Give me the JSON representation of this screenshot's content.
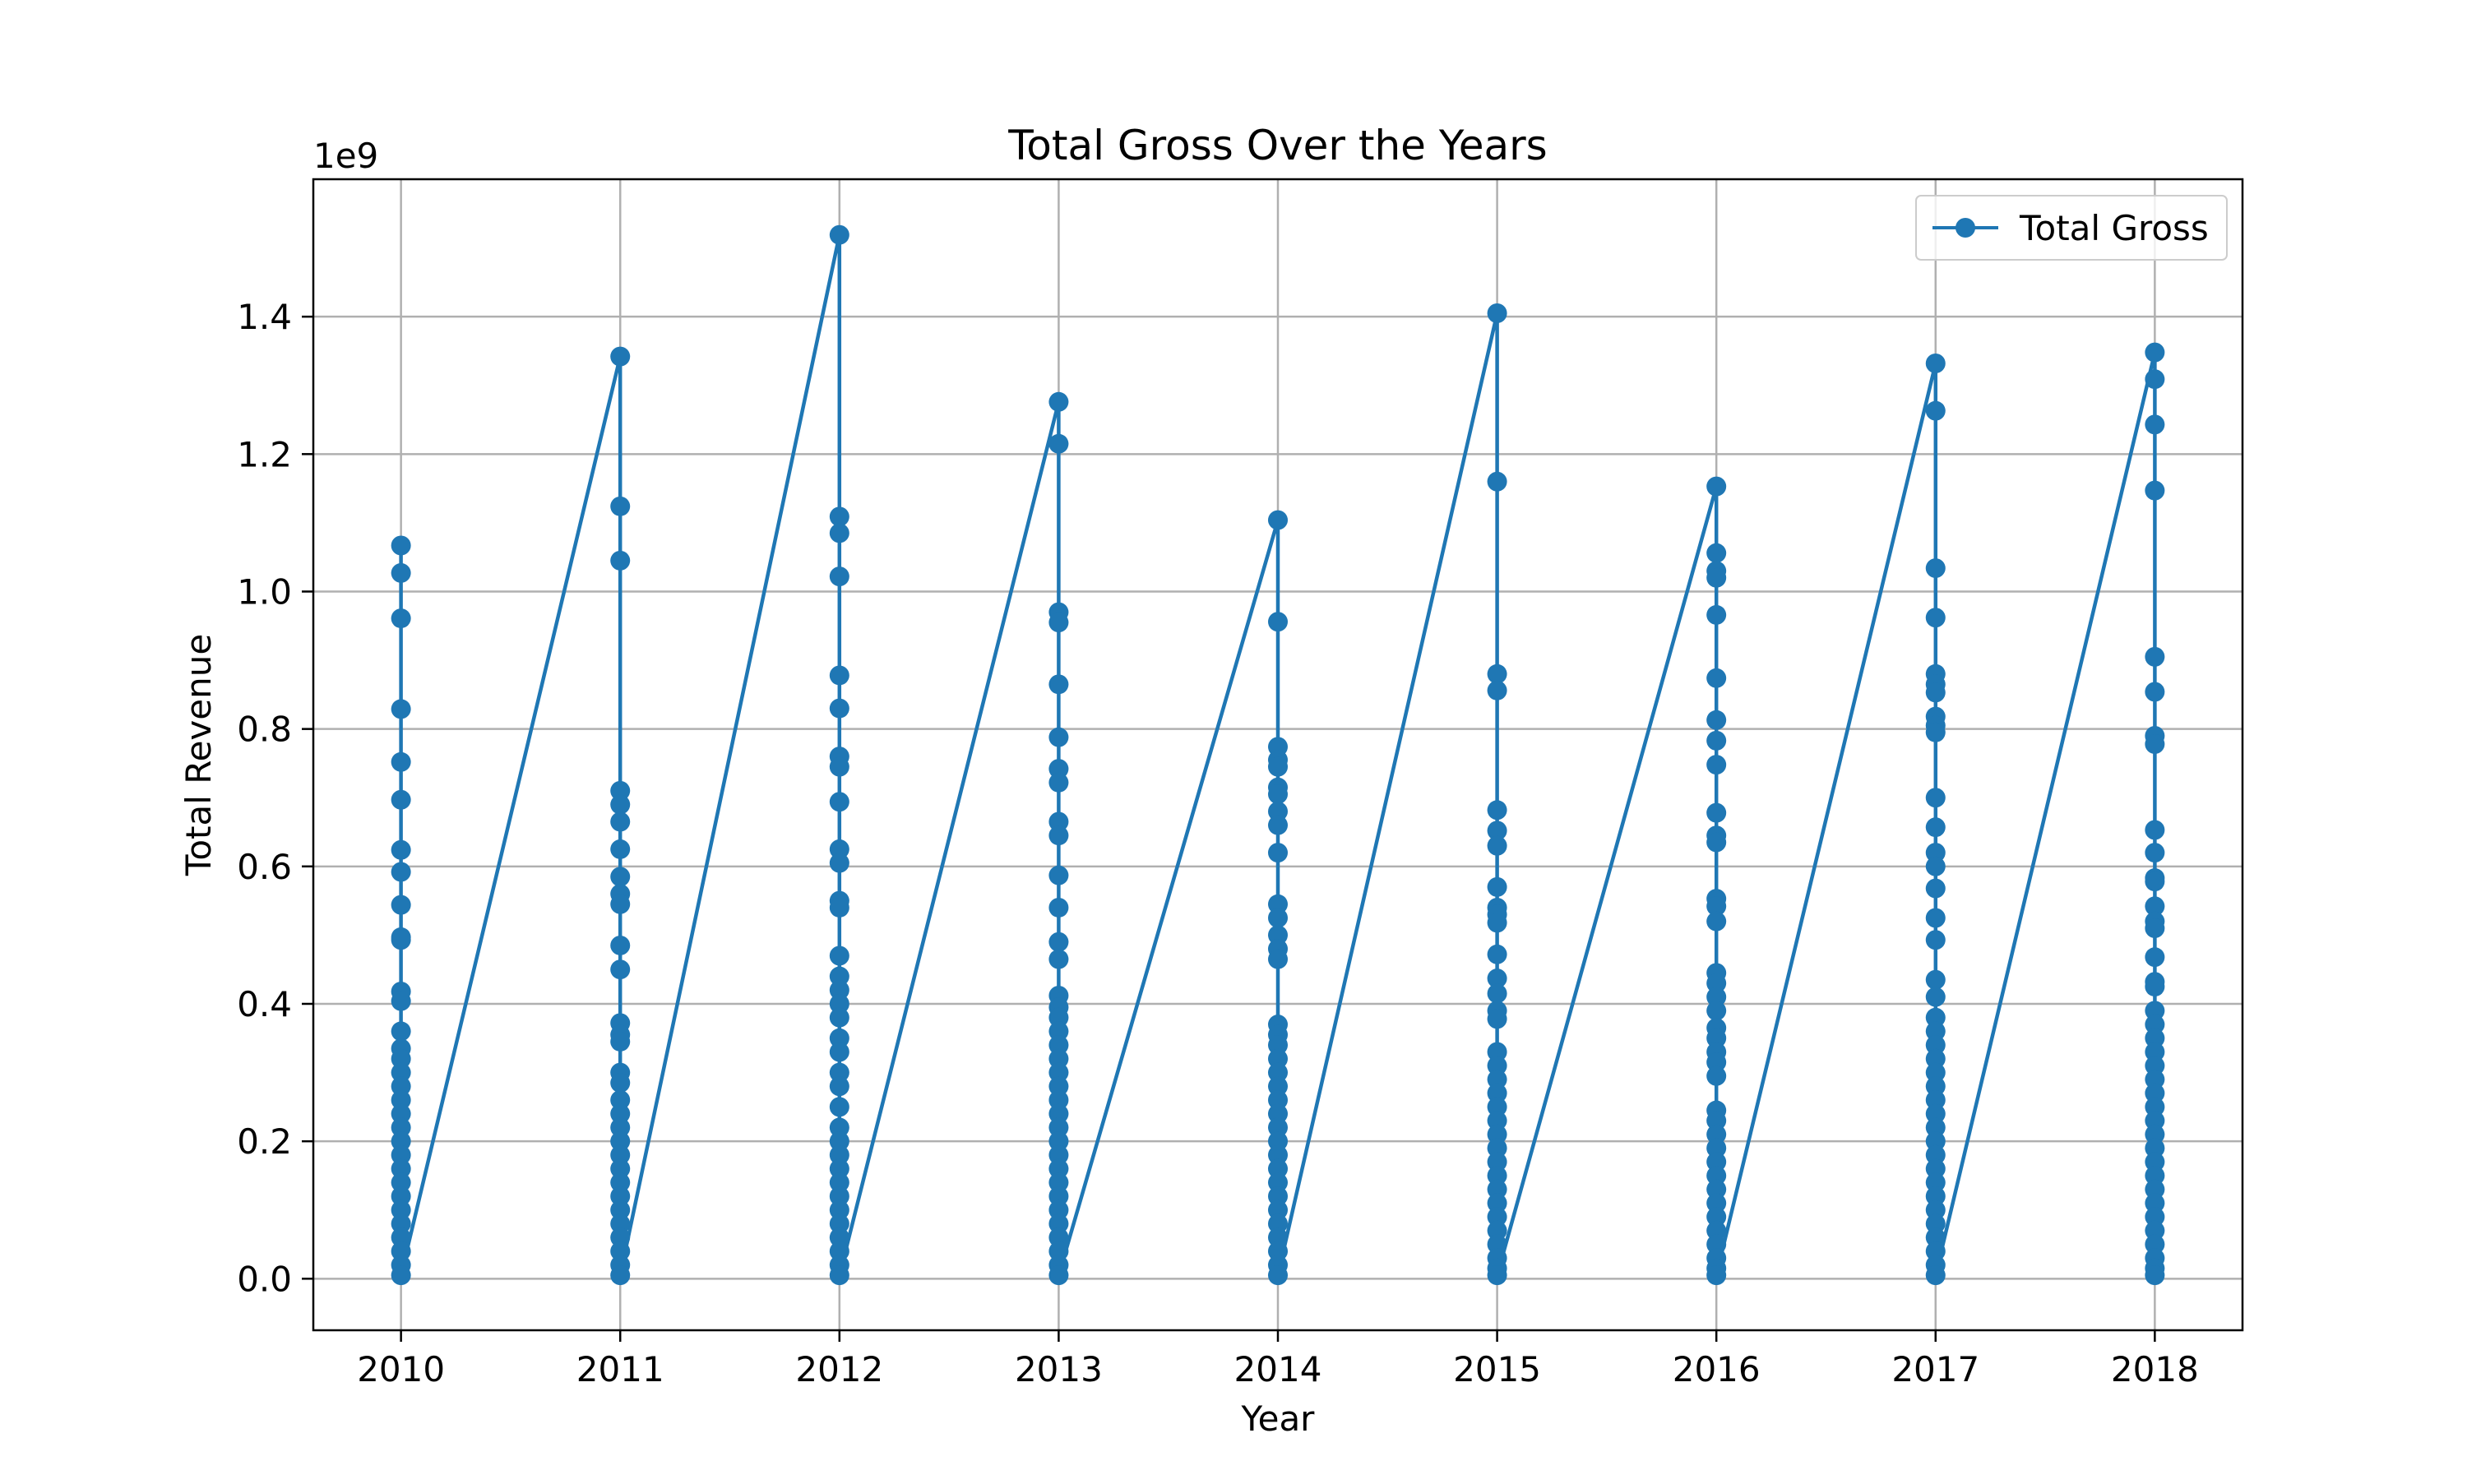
{
  "chart_data": {
    "type": "line",
    "title": "Total Gross Over the Years",
    "xlabel": "Year",
    "ylabel": "Total Revenue",
    "y_offset_label": "1e9",
    "xlim": [
      2009.6,
      2018.4
    ],
    "ylim": [
      -0.075,
      1.6
    ],
    "y_scale_multiplier": 1000000000,
    "x_ticks": [
      2010,
      2011,
      2012,
      2013,
      2014,
      2015,
      2016,
      2017,
      2018
    ],
    "x_tick_labels": [
      "2010",
      "2011",
      "2012",
      "2013",
      "2014",
      "2015",
      "2016",
      "2017",
      "2018"
    ],
    "y_ticks": [
      0.0,
      0.2,
      0.4,
      0.6,
      0.8,
      1.0,
      1.2,
      1.4
    ],
    "y_tick_labels": [
      "0.0",
      "0.2",
      "0.4",
      "0.6",
      "0.8",
      "1.0",
      "1.2",
      "1.4"
    ],
    "grid": true,
    "legend_position": "upper right",
    "series": [
      {
        "name": "Total Gross",
        "color": "#1f77b4",
        "marker": "circle",
        "groups": [
          {
            "x": 2010,
            "y": [
              1.067,
              1.027,
              0.961,
              0.829,
              0.752,
              0.697,
              0.624,
              0.592,
              0.544,
              0.497,
              0.493,
              0.418,
              0.404,
              0.36,
              0.335,
              0.32,
              0.3,
              0.28,
              0.26,
              0.24,
              0.22,
              0.2,
              0.18,
              0.16,
              0.14,
              0.12,
              0.1,
              0.08,
              0.06,
              0.04,
              0.02,
              0.005
            ]
          },
          {
            "x": 2011,
            "y": [
              1.342,
              1.124,
              1.045,
              0.71,
              0.69,
              0.665,
              0.625,
              0.585,
              0.56,
              0.545,
              0.485,
              0.45,
              0.372,
              0.355,
              0.345,
              0.3,
              0.285,
              0.26,
              0.24,
              0.22,
              0.2,
              0.18,
              0.16,
              0.14,
              0.12,
              0.1,
              0.08,
              0.06,
              0.04,
              0.02,
              0.005
            ]
          },
          {
            "x": 2012,
            "y": [
              1.519,
              1.109,
              1.085,
              1.022,
              0.878,
              0.83,
              0.76,
              0.745,
              0.694,
              0.625,
              0.605,
              0.55,
              0.54,
              0.47,
              0.44,
              0.42,
              0.4,
              0.38,
              0.35,
              0.33,
              0.3,
              0.28,
              0.25,
              0.22,
              0.2,
              0.18,
              0.16,
              0.14,
              0.12,
              0.1,
              0.08,
              0.06,
              0.04,
              0.02,
              0.005
            ]
          },
          {
            "x": 2013,
            "y": [
              1.276,
              1.215,
              0.97,
              0.955,
              0.865,
              0.788,
              0.742,
              0.722,
              0.665,
              0.645,
              0.587,
              0.54,
              0.49,
              0.465,
              0.412,
              0.395,
              0.38,
              0.36,
              0.34,
              0.32,
              0.3,
              0.28,
              0.26,
              0.24,
              0.22,
              0.2,
              0.18,
              0.16,
              0.14,
              0.12,
              0.1,
              0.08,
              0.06,
              0.04,
              0.02,
              0.005
            ]
          },
          {
            "x": 2014,
            "y": [
              1.104,
              0.956,
              0.774,
              0.755,
              0.745,
              0.715,
              0.705,
              0.68,
              0.66,
              0.62,
              0.545,
              0.525,
              0.5,
              0.48,
              0.465,
              0.37,
              0.355,
              0.34,
              0.32,
              0.3,
              0.28,
              0.26,
              0.24,
              0.22,
              0.2,
              0.18,
              0.16,
              0.14,
              0.12,
              0.1,
              0.08,
              0.06,
              0.04,
              0.02,
              0.005
            ]
          },
          {
            "x": 2015,
            "y": [
              1.405,
              1.16,
              0.88,
              0.856,
              0.682,
              0.652,
              0.63,
              0.57,
              0.54,
              0.53,
              0.518,
              0.472,
              0.437,
              0.415,
              0.39,
              0.378,
              0.33,
              0.31,
              0.29,
              0.27,
              0.25,
              0.23,
              0.21,
              0.19,
              0.17,
              0.15,
              0.13,
              0.11,
              0.09,
              0.07,
              0.05,
              0.03,
              0.015,
              0.005
            ]
          },
          {
            "x": 2016,
            "y": [
              1.153,
              1.056,
              1.03,
              1.02,
              0.966,
              0.874,
              0.813,
              0.783,
              0.748,
              0.678,
              0.645,
              0.635,
              0.553,
              0.542,
              0.52,
              0.445,
              0.43,
              0.41,
              0.39,
              0.365,
              0.35,
              0.33,
              0.315,
              0.295,
              0.245,
              0.23,
              0.21,
              0.19,
              0.17,
              0.15,
              0.13,
              0.11,
              0.09,
              0.07,
              0.05,
              0.03,
              0.015,
              0.005
            ]
          },
          {
            "x": 2017,
            "y": [
              1.332,
              1.263,
              1.034,
              0.962,
              0.88,
              0.865,
              0.853,
              0.818,
              0.805,
              0.795,
              0.7,
              0.657,
              0.62,
              0.6,
              0.568,
              0.525,
              0.493,
              0.435,
              0.41,
              0.38,
              0.36,
              0.34,
              0.32,
              0.3,
              0.28,
              0.26,
              0.24,
              0.22,
              0.2,
              0.18,
              0.16,
              0.14,
              0.12,
              0.1,
              0.08,
              0.06,
              0.04,
              0.02,
              0.005
            ]
          },
          {
            "x": 2018,
            "y": [
              1.348,
              1.309,
              1.243,
              1.147,
              0.905,
              0.854,
              0.79,
              0.778,
              0.653,
              0.62,
              0.583,
              0.578,
              0.542,
              0.52,
              0.51,
              0.468,
              0.432,
              0.425,
              0.39,
              0.37,
              0.35,
              0.33,
              0.31,
              0.29,
              0.27,
              0.25,
              0.23,
              0.21,
              0.19,
              0.17,
              0.15,
              0.13,
              0.11,
              0.09,
              0.07,
              0.05,
              0.03,
              0.015,
              0.005
            ]
          }
        ]
      }
    ]
  }
}
